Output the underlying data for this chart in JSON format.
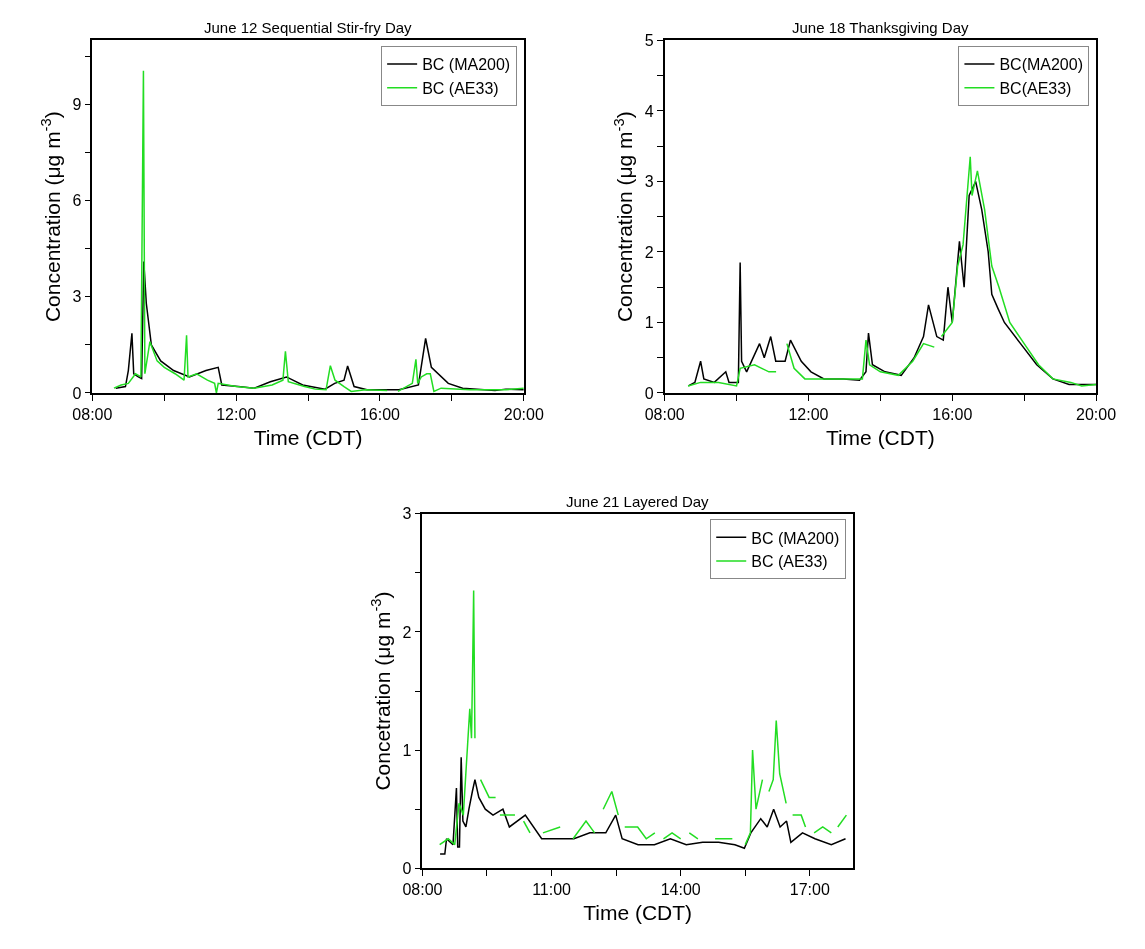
{
  "chart_data": [
    {
      "type": "line",
      "title": "June 12 Sequential Stir-fry Day",
      "xlabel": "Time (CDT)",
      "ylabel": "Concentration (μg m$^{-3}$)",
      "legend": "top right",
      "marker": "none",
      "line_style": "solid",
      "xlim": [
        8,
        20
      ],
      "xticks": [
        {
          "value": 8,
          "label": "08:00"
        },
        {
          "value": 10,
          "label": null
        },
        {
          "value": 12,
          "label": "12:00"
        },
        {
          "value": 14,
          "label": null
        },
        {
          "value": 16,
          "label": "16:00"
        },
        {
          "value": 18,
          "label": null
        },
        {
          "value": 20,
          "label": "20:00"
        }
      ],
      "ylim": [
        0,
        11
      ],
      "yticks": [
        0,
        {
          "value": 1.5,
          "label": null
        },
        3,
        {
          "value": 4.5,
          "label": null
        },
        6,
        {
          "value": 7.5,
          "label": null
        },
        9,
        {
          "value": 10.5,
          "label": null
        }
      ],
      "series": [
        {
          "name": "BC (MA200)",
          "color": "#000000",
          "x": [
            8.65,
            8.92,
            9.0,
            9.1,
            9.15,
            9.28,
            9.37,
            9.43,
            9.5,
            9.64,
            9.9,
            10.26,
            10.7,
            11.16,
            11.5,
            11.6,
            12.06,
            12.5,
            12.95,
            13.4,
            13.85,
            14.47,
            14.74,
            15.0,
            15.1,
            15.28,
            15.64,
            16.53,
            17.07,
            17.27,
            17.43,
            17.9,
            18.3,
            19.2,
            19.5,
            20
          ],
          "values": [
            0.15,
            0.2,
            0.7,
            1.86,
            0.6,
            0.5,
            0.45,
            4.1,
            2.8,
            1.5,
            1.0,
            0.7,
            0.5,
            0.7,
            0.8,
            0.25,
            0.2,
            0.15,
            0.35,
            0.5,
            0.25,
            0.12,
            0.3,
            0.4,
            0.84,
            0.2,
            0.1,
            0.1,
            0.25,
            1.7,
            0.8,
            0.3,
            0.15,
            0.08,
            0.12,
            0.1
          ]
        },
        {
          "name": "BC (AE33)",
          "color": "#22dd22",
          "x": [
            8.6,
            8.8,
            9.0,
            9.2,
            9.35,
            9.42,
            9.46,
            9.6,
            9.8,
            10.0,
            10.3,
            10.55,
            10.62,
            10.66,
            10.9,
            11.2,
            11.4,
            11.45,
            11.5,
            12,
            12.5,
            13.0,
            13.3,
            13.37,
            13.45,
            13.9,
            14.2,
            14.5,
            14.62,
            14.75,
            15.0,
            15.2,
            15.6,
            16.2,
            16.35,
            16.5,
            16.9,
            17.0,
            17.05,
            17.15,
            17.3,
            17.4,
            17.5,
            17.7,
            18.5,
            19.5,
            20
          ],
          "values": [
            0.15,
            0.25,
            0.3,
            0.6,
            0.5,
            10.05,
            0.6,
            1.6,
            1.0,
            0.8,
            0.6,
            0.4,
            1.8,
            0.5,
            0.6,
            0.4,
            0.3,
            0.0,
            0.3,
            0.2,
            0.15,
            0.25,
            0.4,
            1.3,
            0.35,
            0.2,
            0.12,
            0.1,
            0.85,
            0.4,
            0.2,
            0.05,
            0.1,
            0.08,
            null,
            0.05,
            0.3,
            1.05,
            0.3,
            0.5,
            0.6,
            0.6,
            0.05,
            0.15,
            0.1,
            0.1,
            0.15
          ]
        }
      ]
    },
    {
      "type": "line",
      "title": "June 18 Thanksgiving Day",
      "xlabel": "Time (CDT)",
      "ylabel": "Concentration (μg m$^{-3}$)",
      "legend": "top right",
      "marker": "none",
      "line_style": "solid",
      "xlim": [
        8,
        20
      ],
      "xticks": [
        {
          "value": 8,
          "label": "08:00"
        },
        {
          "value": 10,
          "label": null
        },
        {
          "value": 12,
          "label": "12:00"
        },
        {
          "value": 14,
          "label": null
        },
        {
          "value": 16,
          "label": "16:00"
        },
        {
          "value": 18,
          "label": null
        },
        {
          "value": 20,
          "label": "20:00"
        }
      ],
      "ylim": [
        0,
        5
      ],
      "yticks": [
        0,
        {
          "value": 0.5,
          "label": null
        },
        1,
        {
          "value": 1.5,
          "label": null
        },
        2,
        {
          "value": 2.5,
          "label": null
        },
        3,
        {
          "value": 3.5,
          "label": null
        },
        4,
        {
          "value": 4.5,
          "label": null
        },
        5
      ],
      "series": [
        {
          "name": "BC(MA200)",
          "color": "#000000",
          "x": [
            8.66,
            8.84,
            9.0,
            9.09,
            9.38,
            9.7,
            9.79,
            10.05,
            10.1,
            10.14,
            10.28,
            10.64,
            10.77,
            10.95,
            11.09,
            11.35,
            11.5,
            11.8,
            12.07,
            12.43,
            12.97,
            13.42,
            13.6,
            13.67,
            13.78,
            14.13,
            14.58,
            14.94,
            15.2,
            15.34,
            15.57,
            15.75,
            15.88,
            16.0,
            16.2,
            16.33,
            16.47,
            16.65,
            16.82,
            17.0,
            17.1,
            17.27,
            17.45,
            17.9,
            18.35,
            18.8,
            19.25,
            20
          ],
          "values": [
            0.1,
            0.15,
            0.45,
            0.2,
            0.15,
            0.3,
            0.15,
            0.15,
            1.85,
            0.45,
            0.3,
            0.7,
            0.5,
            0.8,
            0.45,
            0.45,
            0.75,
            0.45,
            0.3,
            0.2,
            0.2,
            0.18,
            0.3,
            0.85,
            0.4,
            0.3,
            0.25,
            0.5,
            0.8,
            1.25,
            0.8,
            0.75,
            1.5,
            1.0,
            2.15,
            1.5,
            2.8,
            3.0,
            2.6,
            2.0,
            1.4,
            1.2,
            1.0,
            0.7,
            0.4,
            0.2,
            0.12,
            0.12
          ]
        },
        {
          "name": "BC(AE33)",
          "color": "#22dd22",
          "x": [
            8.65,
            9.0,
            9.5,
            10.0,
            10.1,
            10.5,
            10.7,
            10.9,
            11.1,
            11.2,
            11.4,
            11.6,
            11.9,
            12.5,
            13.0,
            13.5,
            13.6,
            13.7,
            14.0,
            14.5,
            14.9,
            15.2,
            15.5,
            15.6,
            15.7,
            16.0,
            16.15,
            16.3,
            16.5,
            16.55,
            16.7,
            16.9,
            17.1,
            17.3,
            17.6,
            18.0,
            18.4,
            18.8,
            19.3,
            19.6,
            20
          ],
          "values": [
            0.1,
            0.15,
            0.15,
            0.1,
            0.35,
            0.4,
            0.35,
            0.3,
            0.3,
            null,
            0.7,
            0.35,
            0.2,
            0.2,
            0.2,
            0.2,
            0.75,
            0.4,
            0.3,
            0.25,
            0.45,
            0.7,
            0.65,
            null,
            0.8,
            1.0,
            1.8,
            2.1,
            3.35,
            2.8,
            3.15,
            2.6,
            1.8,
            1.5,
            1.0,
            0.7,
            0.4,
            0.2,
            0.15,
            0.1,
            0.12
          ]
        }
      ]
    },
    {
      "type": "line",
      "title": "June 21 Layered Day",
      "xlabel": "Time (CDT)",
      "ylabel": "Concetration (μg m$^{-3}$)",
      "legend": "top right",
      "marker": "none",
      "line_style": "solid",
      "xlim": [
        8,
        18
      ],
      "xticks": [
        {
          "value": 8,
          "label": "08:00"
        },
        {
          "value": 9.5,
          "label": null
        },
        {
          "value": 11,
          "label": "11:00"
        },
        {
          "value": 12.5,
          "label": null
        },
        {
          "value": 14,
          "label": "14:00"
        },
        {
          "value": 15.5,
          "label": null
        },
        {
          "value": 17,
          "label": "17:00"
        }
      ],
      "ylim": [
        0,
        3
      ],
      "yticks": [
        0,
        {
          "value": 0.5,
          "label": null
        },
        1,
        {
          "value": 1.5,
          "label": null
        },
        2,
        {
          "value": 2.5,
          "label": null
        },
        3
      ],
      "series": [
        {
          "name": "BC (MA200)",
          "color": "#000000",
          "x": [
            8.41,
            8.52,
            8.56,
            8.71,
            8.79,
            8.82,
            8.86,
            8.9,
            8.94,
            9.01,
            9.08,
            9.16,
            9.22,
            9.31,
            9.46,
            9.64,
            9.87,
            10.02,
            10.39,
            10.77,
            11.14,
            11.52,
            11.89,
            12.26,
            12.49,
            12.64,
            13.01,
            13.39,
            13.76,
            14.13,
            14.51,
            14.88,
            15.26,
            15.48,
            15.63,
            15.86,
            16.01,
            16.16,
            16.31,
            16.46,
            16.56,
            16.83,
            17.12,
            17.5,
            17.83
          ],
          "values": [
            0.12,
            0.12,
            0.25,
            0.2,
            0.68,
            0.18,
            0.18,
            0.94,
            0.4,
            0.35,
            0.5,
            0.65,
            0.75,
            0.6,
            0.5,
            0.45,
            0.5,
            0.35,
            0.45,
            0.25,
            0.25,
            0.25,
            0.3,
            0.3,
            0.45,
            0.25,
            0.2,
            0.2,
            0.25,
            0.2,
            0.22,
            0.22,
            0.2,
            0.17,
            0.3,
            0.42,
            0.35,
            0.5,
            0.35,
            0.4,
            0.22,
            0.3,
            0.25,
            0.2,
            0.25
          ]
        },
        {
          "name": "BC (AE33)",
          "color": "#22dd22",
          "x": [
            8.4,
            8.6,
            8.75,
            8.85,
            8.95,
            9.05,
            9.1,
            9.14,
            9.17,
            9.19,
            9.22,
            9.25,
            9.35,
            9.55,
            9.7,
            9.75,
            9.8,
            10.15,
            10.3,
            10.35,
            10.5,
            10.7,
            10.8,
            11.2,
            11.4,
            11.5,
            11.8,
            12.0,
            12.1,
            12.2,
            12.4,
            12.55,
            12.6,
            12.7,
            13.0,
            13.2,
            13.4,
            13.5,
            13.6,
            13.8,
            14.0,
            14.1,
            14.2,
            14.4,
            14.6,
            14.8,
            15.2,
            15.4,
            15.5,
            15.62,
            15.67,
            15.75,
            15.9,
            15.95,
            16.05,
            16.15,
            16.22,
            16.3,
            16.45,
            16.5,
            16.6,
            16.8,
            16.9,
            17.0,
            17.1,
            17.3,
            17.5,
            17.6,
            17.65,
            17.85
          ],
          "values": [
            0.2,
            0.25,
            0.2,
            0.55,
            0.45,
            1.05,
            1.35,
            1.1,
            1.8,
            2.35,
            1.1,
            null,
            0.75,
            0.6,
            0.6,
            null,
            0.45,
            0.45,
            null,
            0.4,
            0.3,
            null,
            0.3,
            0.35,
            null,
            0.25,
            0.4,
            0.3,
            null,
            0.5,
            0.65,
            0.45,
            null,
            0.35,
            0.35,
            0.25,
            0.3,
            null,
            0.25,
            0.3,
            0.25,
            null,
            0.3,
            0.25,
            null,
            0.25,
            0.25,
            null,
            0.2,
            0.3,
            1.0,
            0.5,
            0.75,
            null,
            0.65,
            0.75,
            1.25,
            0.8,
            0.55,
            null,
            0.45,
            0.45,
            0.35,
            null,
            0.3,
            0.35,
            0.3,
            null,
            0.35,
            0.45
          ]
        }
      ]
    }
  ]
}
